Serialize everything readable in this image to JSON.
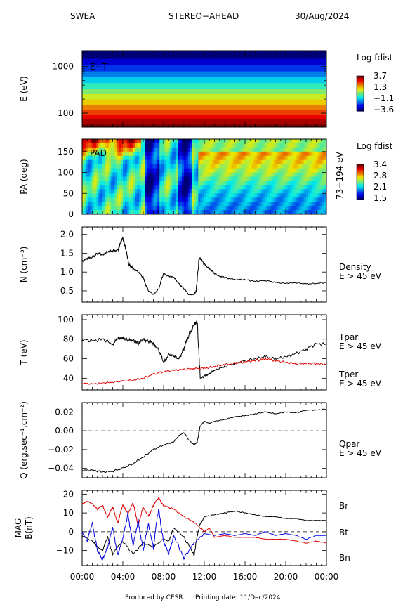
{
  "header": {
    "instrument": "SWEA",
    "spacecraft": "STEREO−AHEAD",
    "date": "30/Aug/2024"
  },
  "footer": {
    "produced": "Produced by CESR.",
    "printing": "Printing date: 11/Dec/2024"
  },
  "x_ticks": [
    "00:00",
    "04:00",
    "08:00",
    "12:00",
    "16:00",
    "20:00",
    "00:00"
  ],
  "colors": {
    "black": "#000000",
    "red": "#e00000",
    "blue": "#0000e0"
  },
  "chart_data": [
    {
      "type": "heatmap",
      "id": "energy_time",
      "inner_label": "E−T",
      "ylabel": "E (eV)",
      "yscale": "log",
      "ylim": [
        50,
        2200
      ],
      "yticks": [
        "1000",
        "100"
      ],
      "colorbar": {
        "title": "Log fdist",
        "labels": [
          "3.7",
          "1.3",
          "−1.1",
          "−3.6"
        ],
        "range": [
          -3.6,
          3.7
        ]
      },
      "energy_bands": [
        {
          "e_lo": 50,
          "e_hi": 60,
          "level": 3.7
        },
        {
          "e_lo": 60,
          "e_hi": 75,
          "level": 3.3
        },
        {
          "e_lo": 75,
          "e_hi": 95,
          "level": 2.8
        },
        {
          "e_lo": 95,
          "e_hi": 120,
          "level": 2.3
        },
        {
          "e_lo": 120,
          "e_hi": 155,
          "level": 1.8
        },
        {
          "e_lo": 155,
          "e_hi": 200,
          "level": 1.2
        },
        {
          "e_lo": 200,
          "e_hi": 260,
          "level": 0.7
        },
        {
          "e_lo": 260,
          "e_hi": 340,
          "level": 0.1
        },
        {
          "e_lo": 340,
          "e_hi": 450,
          "level": -0.5
        },
        {
          "e_lo": 450,
          "e_hi": 600,
          "level": -1.1
        },
        {
          "e_lo": 600,
          "e_hi": 800,
          "level": -1.7
        },
        {
          "e_lo": 800,
          "e_hi": 1100,
          "level": -2.3
        },
        {
          "e_lo": 1100,
          "e_hi": 1500,
          "level": -2.9
        },
        {
          "e_lo": 1500,
          "e_hi": 2200,
          "level": -3.6
        }
      ]
    },
    {
      "type": "heatmap",
      "id": "pitch_angle",
      "inner_label": "PAD",
      "ylabel": "PA (deg)",
      "right_label": "73−194 eV",
      "ylim": [
        0,
        180
      ],
      "yticks": [
        0,
        50,
        100,
        150
      ],
      "colorbar": {
        "title": "Log fdist",
        "labels": [
          "3.4",
          "2.8",
          "2.1",
          "1.5"
        ],
        "range": [
          1.5,
          3.4
        ]
      }
    },
    {
      "type": "line",
      "id": "density",
      "ylabel": "N (cm⁻³)",
      "ylim": [
        0.2,
        2.2
      ],
      "yticks": [
        "0.5",
        "1.0",
        "1.5",
        "2.0"
      ],
      "ytick_values": [
        0.5,
        1.0,
        1.5,
        2.0
      ],
      "series": [
        {
          "name": "Density",
          "sub": "E > 45 eV",
          "color": "#000000",
          "x": [
            0,
            0.5,
            1,
            1.5,
            2,
            2.5,
            3,
            3.5,
            4,
            4.3,
            4.6,
            5,
            5.5,
            6,
            6.5,
            7,
            7.5,
            8,
            8.5,
            9,
            9.5,
            10,
            10.5,
            11,
            11.2,
            11.5,
            12,
            12.5,
            13,
            13.5,
            14,
            15,
            16,
            17,
            18,
            19,
            20,
            21,
            22,
            23,
            24
          ],
          "values": [
            1.3,
            1.35,
            1.4,
            1.5,
            1.45,
            1.55,
            1.55,
            1.6,
            1.9,
            1.6,
            1.2,
            1.1,
            1.0,
            0.85,
            0.5,
            0.4,
            0.55,
            0.95,
            0.9,
            0.85,
            0.7,
            0.55,
            0.4,
            0.4,
            0.5,
            1.4,
            1.2,
            1.1,
            0.95,
            0.9,
            0.85,
            0.8,
            0.8,
            0.75,
            0.78,
            0.72,
            0.7,
            0.72,
            0.68,
            0.7,
            0.72
          ]
        }
      ]
    },
    {
      "type": "line",
      "id": "temperature",
      "ylabel": "T (eV)",
      "ylim": [
        28,
        105
      ],
      "yticks": [
        "40",
        "60",
        "80",
        "100"
      ],
      "ytick_values": [
        40,
        60,
        80,
        100
      ],
      "series": [
        {
          "name": "Tpar",
          "sub": "E > 45 eV",
          "color": "#000000",
          "x": [
            0,
            1,
            2,
            3,
            3.5,
            4,
            4.5,
            5,
            5.5,
            6,
            6.5,
            7,
            7.5,
            8,
            8.5,
            9,
            9.5,
            10,
            10.5,
            11,
            11.3,
            11.6,
            12,
            12.5,
            13,
            14,
            15,
            16,
            17,
            18,
            19,
            20,
            21,
            22,
            23,
            24
          ],
          "values": [
            80,
            78,
            80,
            75,
            80,
            82,
            78,
            80,
            75,
            80,
            78,
            75,
            70,
            55,
            65,
            62,
            60,
            70,
            85,
            95,
            98,
            40,
            42,
            45,
            48,
            52,
            55,
            58,
            60,
            62,
            60,
            62,
            65,
            70,
            75,
            75
          ]
        },
        {
          "name": "Tper",
          "sub": "E > 45 eV",
          "color": "#e00000",
          "x": [
            0,
            1,
            2,
            3,
            4,
            5,
            6,
            7,
            8,
            9,
            10,
            11,
            12,
            13,
            14,
            15,
            16,
            17,
            18,
            19,
            20,
            21,
            22,
            23,
            24
          ],
          "values": [
            35,
            34,
            35,
            36,
            37,
            38,
            40,
            44,
            47,
            48,
            49,
            50,
            50,
            52,
            54,
            55,
            57,
            58,
            60,
            58,
            56,
            55,
            55,
            55,
            54
          ]
        }
      ]
    },
    {
      "type": "line",
      "id": "heat_flux",
      "ylabel": "Q (erg.sec⁻¹.cm⁻²)",
      "ylim": [
        -0.05,
        0.03
      ],
      "yticks": [
        "−0.04",
        "−0.02",
        "0.00",
        "0.02"
      ],
      "ytick_values": [
        -0.04,
        -0.02,
        0.0,
        0.02
      ],
      "series": [
        {
          "name": "Qpar",
          "sub": "E > 45 eV",
          "color": "#000000",
          "x": [
            0,
            1,
            2,
            3,
            4,
            5,
            6,
            7,
            8,
            9,
            9.5,
            10,
            10.5,
            11,
            11.3,
            11.6,
            12,
            12.5,
            13,
            14,
            15,
            16,
            17,
            18,
            19,
            20,
            21,
            22,
            23,
            24
          ],
          "values": [
            -0.042,
            -0.042,
            -0.044,
            -0.043,
            -0.04,
            -0.035,
            -0.028,
            -0.02,
            -0.015,
            -0.012,
            -0.005,
            -0.002,
            -0.01,
            -0.015,
            -0.012,
            0.005,
            0.01,
            0.008,
            0.01,
            0.012,
            0.015,
            0.016,
            0.018,
            0.02,
            0.018,
            0.02,
            0.019,
            0.022,
            0.022,
            0.023
          ]
        }
      ]
    },
    {
      "type": "line",
      "id": "magnetic_field",
      "ylabel": "MAG B(nT)",
      "ylim": [
        -18,
        22
      ],
      "yticks": [
        "−10",
        "0",
        "10",
        "20"
      ],
      "ytick_values": [
        -10,
        0,
        10,
        20
      ],
      "series": [
        {
          "name": "Br",
          "color": "#000000",
          "x": [
            0,
            1,
            1.5,
            2,
            2.5,
            3,
            3.5,
            4,
            5,
            6,
            7,
            8,
            8.5,
            9,
            10,
            11,
            11.5,
            12,
            13,
            14,
            15,
            16,
            17,
            18,
            19,
            20,
            21,
            22,
            23,
            24
          ],
          "values": [
            -2,
            -5,
            -8,
            -10,
            -3,
            -12,
            -8,
            -5,
            -12,
            -6,
            -8,
            -4,
            -5,
            2,
            -3,
            -12,
            3,
            8,
            9,
            10,
            11,
            10,
            9,
            8,
            8,
            7,
            7,
            6,
            6,
            6
          ]
        },
        {
          "name": "Bt",
          "color": "#e00000",
          "x": [
            0,
            0.5,
            1,
            1.5,
            2,
            2.5,
            3,
            3.5,
            4,
            4.5,
            5,
            5.5,
            6,
            6.5,
            7,
            7.5,
            8,
            9,
            10,
            11,
            12,
            12.5,
            13,
            14,
            15,
            16,
            17,
            18,
            19,
            20,
            21,
            22,
            23,
            24
          ],
          "values": [
            15,
            16,
            15,
            12,
            14,
            8,
            13,
            5,
            14,
            10,
            15,
            4,
            13,
            8,
            14,
            18,
            14,
            12,
            8,
            5,
            0,
            2,
            -3,
            -2,
            -3,
            -3,
            -3,
            -4,
            -4,
            -4,
            -5,
            -6,
            -5,
            -6
          ]
        },
        {
          "name": "Bn",
          "color": "#0000e0",
          "x": [
            0,
            0.5,
            1,
            1.5,
            2,
            2.5,
            3,
            3.5,
            4,
            4.5,
            5,
            5.5,
            6,
            6.5,
            7,
            7.5,
            8,
            8.5,
            9,
            10,
            11,
            12,
            13,
            14,
            15,
            16,
            17,
            18,
            19,
            20,
            21,
            22,
            23,
            24
          ],
          "values": [
            0,
            -5,
            5,
            -10,
            -15,
            -8,
            2,
            -12,
            -4,
            10,
            -8,
            6,
            -10,
            4,
            -8,
            12,
            -5,
            -12,
            -2,
            -14,
            -6,
            -1,
            -2,
            -1,
            -2,
            -1,
            -2,
            0,
            -2,
            -1,
            -2,
            -4,
            -2,
            -2
          ]
        }
      ]
    }
  ]
}
